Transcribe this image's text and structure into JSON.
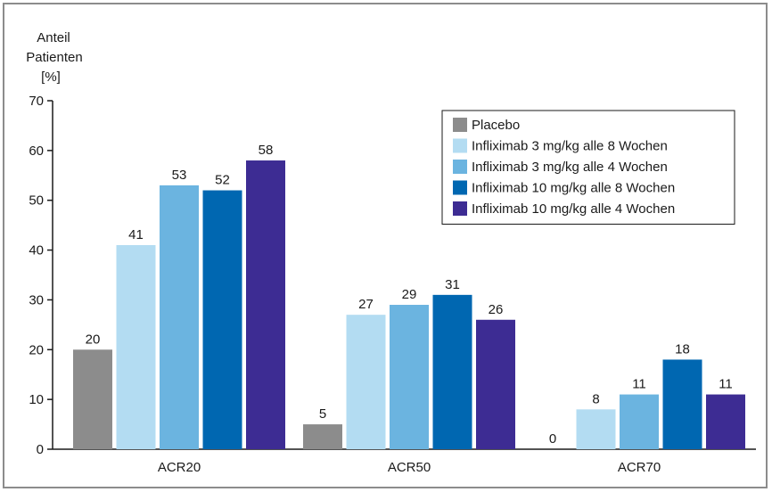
{
  "chart_data": {
    "type": "bar",
    "ylabel_lines": [
      "Anteil",
      "Patienten",
      "[%]"
    ],
    "ylim": [
      0,
      70
    ],
    "yticks": [
      0,
      10,
      20,
      30,
      40,
      50,
      60,
      70
    ],
    "categories": [
      "ACR20",
      "ACR50",
      "ACR70"
    ],
    "series": [
      {
        "name": "Placebo",
        "color": "#8c8c8c",
        "values": [
          20,
          5,
          0
        ]
      },
      {
        "name": "Infliximab 3 mg/kg alle 8 Wochen",
        "color": "#b3dcf2",
        "values": [
          41,
          27,
          8
        ]
      },
      {
        "name": "Infliximab 3 mg/kg alle 4 Wochen",
        "color": "#6bb4e0",
        "values": [
          53,
          29,
          11
        ]
      },
      {
        "name": "Infliximab 10 mg/kg alle 8 Wochen",
        "color": "#0067b1",
        "values": [
          52,
          31,
          18
        ]
      },
      {
        "name": "Infliximab 10 mg/kg alle 4 Wochen",
        "color": "#3d2c93",
        "values": [
          58,
          26,
          11
        ]
      }
    ],
    "grid": false,
    "legend_position": "top-right"
  }
}
